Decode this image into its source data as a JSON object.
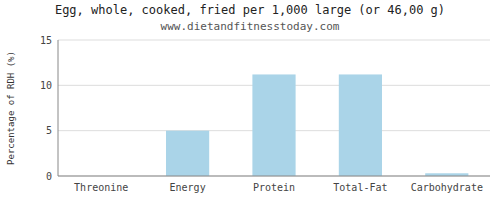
{
  "chart_data": {
    "type": "bar",
    "title": "Egg, whole, cooked, fried per 1,000 large (or 46,00 g)",
    "subtitle": "www.dietandfitnesstoday.com",
    "categories": [
      "Threonine",
      "Energy",
      "Protein",
      "Total-Fat",
      "Carbohydrate"
    ],
    "values": [
      0,
      5.0,
      11.2,
      11.2,
      0.3
    ],
    "color": "#aad4e8",
    "ylabel": "Percentage of RDH (%)",
    "ylim": [
      0,
      15
    ],
    "yticks": [
      0,
      5,
      10,
      15
    ],
    "grid": true
  }
}
